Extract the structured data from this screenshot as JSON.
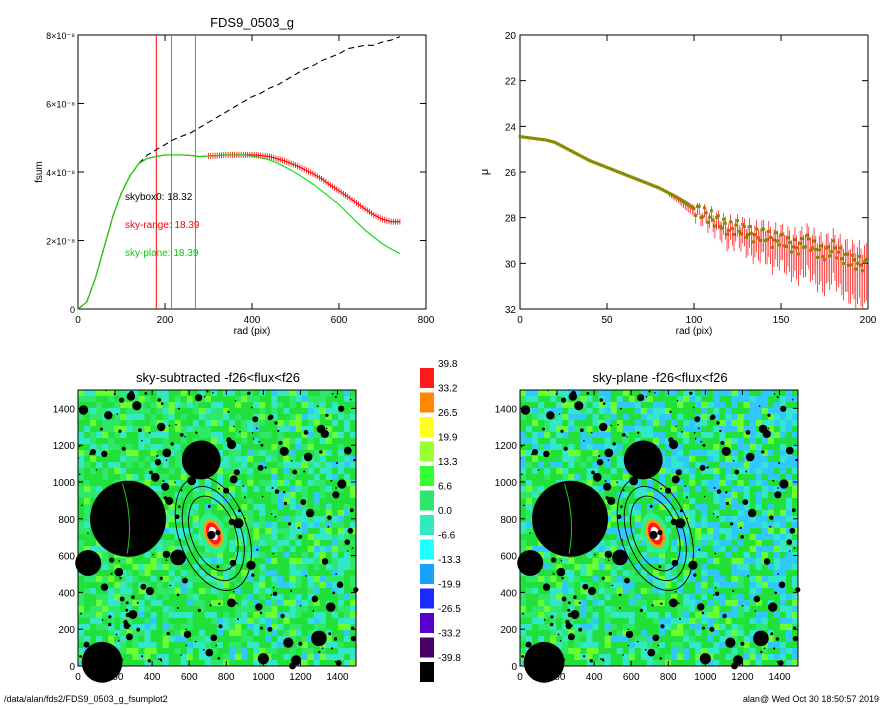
{
  "footer": {
    "path": "/data/alan/fds2/FDS9_0503_g_fsumplot2",
    "user_time": "alan@  Wed Oct 30 18:50:57 2019"
  },
  "colors": {
    "black": "#000000",
    "red": "#ff0000",
    "green": "#00e000",
    "gray": "#7f7f7f",
    "olive": "#8a8a00",
    "sky_green": "#22e030",
    "sky_cyan": "#30e6a0",
    "sky_blue": "#30b8ff"
  },
  "chart_data": [
    {
      "type": "line",
      "title": "FDS9_0503_g",
      "xlabel": "rad (pix)",
      "ylabel": "fsum",
      "xlim": [
        0,
        800
      ],
      "ylim": [
        0,
        8e-08
      ],
      "xticks": [
        "0",
        "200",
        "400",
        "600",
        "800"
      ],
      "yticks": [
        "0",
        "2×10⁻⁸",
        "4×10⁻⁸",
        "6×10⁻⁸",
        "8×10⁻⁸"
      ],
      "vlines": [
        {
          "x": 180,
          "color": "red"
        },
        {
          "x": 215,
          "color": "gray"
        },
        {
          "x": 270,
          "color": "gray"
        }
      ],
      "annotations": [
        {
          "text": "skybox0: 18.32",
          "color": "black"
        },
        {
          "text": "sky-range: 18.39",
          "color": "red"
        },
        {
          "text": "sky-plane: 18.39",
          "color": "green"
        }
      ],
      "series": [
        {
          "style": "dashed",
          "color": "black",
          "x": [
            0,
            20,
            40,
            60,
            80,
            100,
            120,
            140,
            160,
            180,
            200,
            220,
            240,
            260,
            280,
            300,
            320,
            340,
            360,
            380,
            400,
            420,
            440,
            460,
            480,
            500,
            520,
            540,
            560,
            580,
            600,
            620,
            640,
            660,
            680,
            700,
            720,
            740
          ],
          "y": [
            0,
            2e-09,
            9e-09,
            1.8e-08,
            2.7e-08,
            3.4e-08,
            3.9e-08,
            4.25e-08,
            4.5e-08,
            4.65e-08,
            4.8e-08,
            4.95e-08,
            5.05e-08,
            5.15e-08,
            5.3e-08,
            5.45e-08,
            5.6e-08,
            5.75e-08,
            5.9e-08,
            6.05e-08,
            6.2e-08,
            6.3e-08,
            6.45e-08,
            6.55e-08,
            6.7e-08,
            6.85e-08,
            7e-08,
            7.1e-08,
            7.25e-08,
            7.35e-08,
            7.45e-08,
            7.6e-08,
            7.65e-08,
            7.7e-08,
            7.7e-08,
            7.8e-08,
            7.85e-08,
            7.95e-08
          ]
        },
        {
          "style": "errorbar",
          "color": "red",
          "x": [
            0,
            20,
            40,
            60,
            80,
            100,
            120,
            140,
            160,
            180,
            200,
            220,
            240,
            260,
            280,
            300,
            320,
            340,
            360,
            380,
            400,
            420,
            440,
            460,
            480,
            500,
            520,
            540,
            560,
            580,
            600,
            620,
            640,
            660,
            680,
            700,
            720,
            740
          ],
          "y": [
            0,
            2e-09,
            9e-09,
            1.8e-08,
            2.7e-08,
            3.4e-08,
            3.9e-08,
            4.25e-08,
            4.4e-08,
            4.45e-08,
            4.5e-08,
            4.5e-08,
            4.5e-08,
            4.48e-08,
            4.45e-08,
            4.47e-08,
            4.48e-08,
            4.5e-08,
            4.5e-08,
            4.5e-08,
            4.5e-08,
            4.48e-08,
            4.45e-08,
            4.38e-08,
            4.3e-08,
            4.2e-08,
            4.08e-08,
            3.95e-08,
            3.8e-08,
            3.62e-08,
            3.45e-08,
            3.28e-08,
            3.1e-08,
            2.92e-08,
            2.75e-08,
            2.62e-08,
            2.55e-08,
            2.55e-08
          ]
        },
        {
          "style": "solid",
          "color": "green",
          "x": [
            0,
            20,
            40,
            60,
            80,
            100,
            120,
            140,
            160,
            180,
            200,
            220,
            240,
            260,
            280,
            300,
            320,
            340,
            360,
            380,
            400,
            420,
            440,
            460,
            480,
            500,
            520,
            540,
            560,
            580,
            600,
            620,
            640,
            660,
            680,
            700,
            720,
            740
          ],
          "y": [
            0,
            2e-09,
            9e-09,
            1.8e-08,
            2.7e-08,
            3.4e-08,
            3.9e-08,
            4.25e-08,
            4.4e-08,
            4.45e-08,
            4.5e-08,
            4.5e-08,
            4.5e-08,
            4.48e-08,
            4.45e-08,
            4.47e-08,
            4.48e-08,
            4.5e-08,
            4.5e-08,
            4.5e-08,
            4.47e-08,
            4.42e-08,
            4.35e-08,
            4.25e-08,
            4.12e-08,
            3.98e-08,
            3.82e-08,
            3.65e-08,
            3.45e-08,
            3.25e-08,
            3.05e-08,
            2.8e-08,
            2.55e-08,
            2.3e-08,
            2.1e-08,
            1.9e-08,
            1.75e-08,
            1.62e-08
          ]
        }
      ]
    },
    {
      "type": "scatter",
      "title": "",
      "xlabel": "rad (pix)",
      "ylabel": "μ",
      "xlim": [
        0,
        200
      ],
      "ylim": [
        32,
        20
      ],
      "xticks": [
        "0",
        "50",
        "100",
        "150",
        "200"
      ],
      "yticks": [
        "20",
        "22",
        "24",
        "26",
        "28",
        "30",
        "32"
      ],
      "series": [
        {
          "color": "olive",
          "x": [
            0,
            5,
            10,
            15,
            20,
            25,
            30,
            35,
            40,
            45,
            50,
            55,
            60,
            65,
            70,
            75,
            80,
            85,
            90,
            95,
            100,
            105,
            110,
            115,
            120,
            125,
            130,
            135,
            140,
            145,
            150,
            155,
            160,
            165,
            170,
            175,
            180,
            185,
            190,
            195,
            200
          ],
          "y": [
            24.45,
            24.5,
            24.55,
            24.6,
            24.7,
            24.9,
            25.1,
            25.3,
            25.5,
            25.65,
            25.8,
            25.95,
            26.1,
            26.25,
            26.4,
            26.55,
            26.7,
            26.9,
            27.1,
            27.35,
            27.6,
            27.8,
            28.0,
            28.2,
            28.5,
            28.4,
            28.6,
            28.8,
            28.7,
            29.0,
            28.9,
            29.2,
            29.3,
            29.0,
            29.4,
            29.6,
            29.3,
            29.7,
            29.9,
            30.0,
            30.1
          ],
          "err": [
            0.02,
            0.02,
            0.02,
            0.02,
            0.02,
            0.03,
            0.03,
            0.04,
            0.04,
            0.05,
            0.05,
            0.05,
            0.06,
            0.07,
            0.08,
            0.1,
            0.12,
            0.15,
            0.2,
            0.3,
            0.35,
            0.4,
            0.5,
            0.6,
            0.8,
            0.7,
            0.9,
            1.0,
            1.0,
            1.2,
            1.1,
            1.3,
            1.4,
            1.3,
            1.5,
            1.6,
            1.4,
            1.6,
            1.7,
            1.8,
            1.8
          ]
        }
      ]
    },
    {
      "type": "heatmap",
      "title": "sky-subtracted -f26<flux<f26",
      "xlim": [
        0,
        1500
      ],
      "ylim": [
        0,
        1500
      ],
      "xticks": [
        "0",
        "200",
        "400",
        "600",
        "800",
        "1000",
        "1200",
        "1400"
      ],
      "yticks": [
        "0",
        "200",
        "400",
        "600",
        "800",
        "1000",
        "1200",
        "1400"
      ]
    },
    {
      "type": "heatmap",
      "title": "sky-plane -f26<flux<f26",
      "xlim": [
        0,
        1500
      ],
      "ylim": [
        0,
        1500
      ],
      "xticks": [
        "0",
        "200",
        "400",
        "600",
        "800",
        "1000",
        "1200",
        "1400"
      ],
      "yticks": [
        "0",
        "200",
        "400",
        "600",
        "800",
        "1000",
        "1200",
        "1400"
      ]
    },
    {
      "type": "colorbar",
      "labels": [
        "39.8",
        "33.2",
        "26.5",
        "19.9",
        "13.3",
        "6.6",
        "0.0",
        "-6.6",
        "-13.3",
        "-19.9",
        "-26.5",
        "-33.2",
        "-39.8"
      ],
      "colors": [
        "#ff1a1a",
        "#ff8800",
        "#ffff22",
        "#9aff33",
        "#33ff33",
        "#2ee66e",
        "#33eac0",
        "#22ffff",
        "#1aa0ff",
        "#1a2aff",
        "#5500cc",
        "#4a0066",
        "#000000"
      ]
    }
  ]
}
